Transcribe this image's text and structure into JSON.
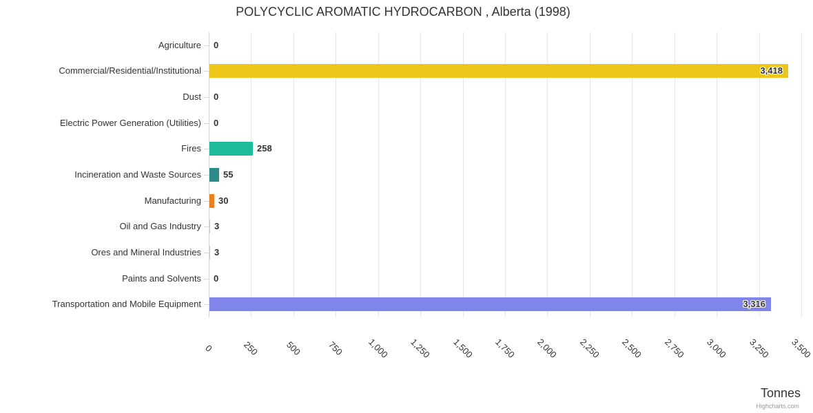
{
  "chart_data": {
    "type": "bar",
    "orientation": "horizontal",
    "title": "POLYCYCLIC AROMATIC HYDROCARBON , Alberta (1998)",
    "categories": [
      "Agriculture",
      "Commercial/Residential/Institutional",
      "Dust",
      "Electric Power Generation (Utilities)",
      "Fires",
      "Incineration and Waste Sources",
      "Manufacturing",
      "Oil and Gas Industry",
      "Ores and Mineral Industries",
      "Paints and Solvents",
      "Transportation and Mobile Equipment"
    ],
    "values": [
      0,
      3418,
      0,
      0,
      258,
      55,
      30,
      3,
      3,
      0,
      3316
    ],
    "value_labels": [
      "0",
      "3,418",
      "0",
      "0",
      "258",
      "55",
      "30",
      "3",
      "3",
      "0",
      "3,316"
    ],
    "bar_colors": [
      null,
      "#EDC51B",
      null,
      null,
      "#1FBA9A",
      "#2E8B8B",
      "#E8821E",
      null,
      null,
      null,
      "#8085E9"
    ],
    "value_axis": {
      "label": "Tonnes",
      "min": 0,
      "max": 3500,
      "tick_interval": 250,
      "tick_labels": [
        "0",
        "250",
        "500",
        "750",
        "1,000",
        "1,250",
        "1,500",
        "1,750",
        "2,000",
        "2,250",
        "2,500",
        "2,750",
        "3,000",
        "3,250",
        "3,500"
      ]
    },
    "grid": true,
    "legend": "none",
    "credit": "Highcharts.com",
    "colors": {
      "axis_line": "#CCD6EB",
      "grid_line": "#E6E6E6",
      "text": "#333333",
      "credit_text": "#999999"
    }
  }
}
